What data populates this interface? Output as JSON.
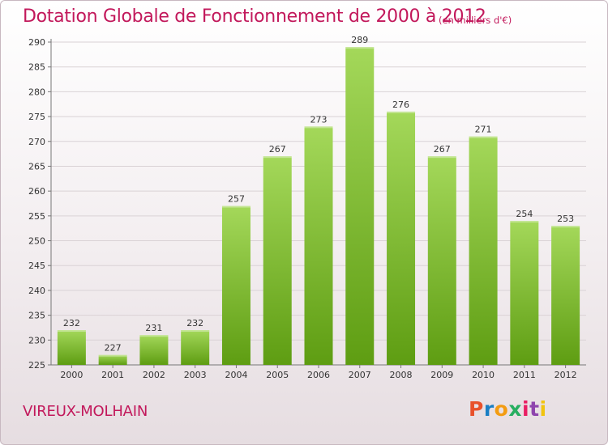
{
  "title": "Dotation Globale de Fonctionnement de 2000 à 2012",
  "unit_note": "(en milliers d'€)",
  "commune": "VIREUX-MOLHAIN",
  "logo": {
    "letters": [
      "P",
      "r",
      "o",
      "x",
      "i",
      "t",
      "i"
    ],
    "colors": [
      "#e8512b",
      "#1a7fc4",
      "#f39c12",
      "#27ae60",
      "#e91e63",
      "#8e44ad",
      "#f1c40f"
    ]
  },
  "colors": {
    "bar_top": "#a4d85a",
    "bar_bottom": "#5e9d12",
    "title": "#c2185b"
  },
  "chart_data": {
    "type": "bar",
    "title": "Dotation Globale de Fonctionnement de 2000 à 2012",
    "xlabel": "",
    "ylabel": "",
    "categories": [
      "2000",
      "2001",
      "2002",
      "2003",
      "2004",
      "2005",
      "2006",
      "2007",
      "2008",
      "2009",
      "2010",
      "2011",
      "2012"
    ],
    "values": [
      232,
      227,
      231,
      232,
      257,
      267,
      273,
      289,
      276,
      267,
      271,
      254,
      253
    ],
    "ylim": [
      225,
      290
    ],
    "yticks": [
      225,
      230,
      235,
      240,
      245,
      250,
      255,
      260,
      265,
      270,
      275,
      280,
      285,
      290
    ],
    "grid": true,
    "legend": "none"
  }
}
